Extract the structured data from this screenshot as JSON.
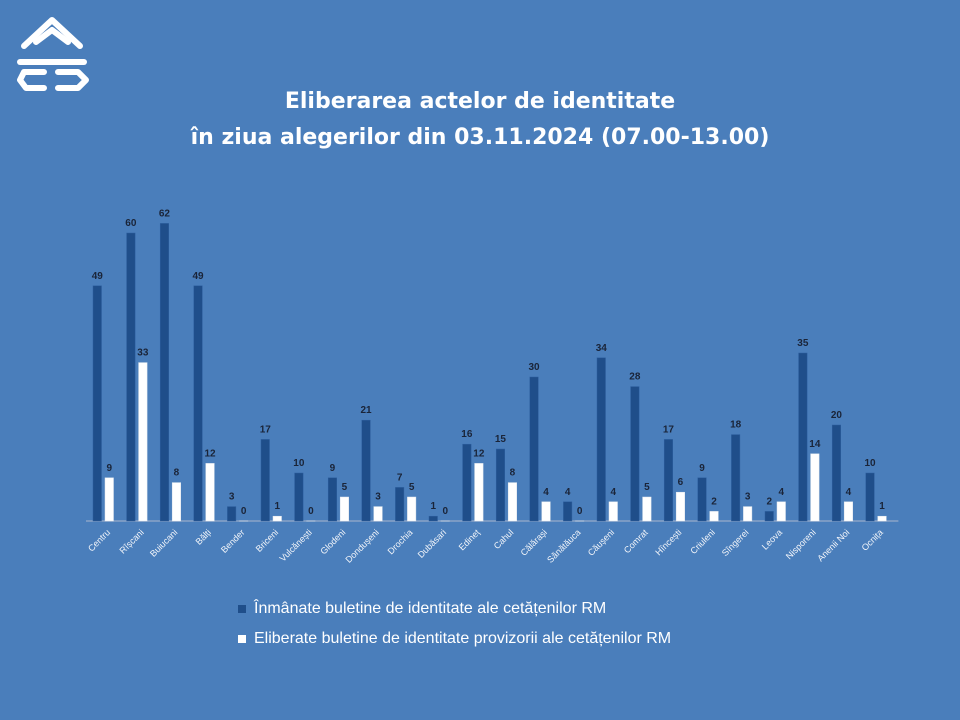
{
  "title_line1": "Eliberarea actelor de identitate",
  "title_line2": "în ziua alegerilor din 03.11.2024 (07.00-13.00)",
  "colors": {
    "background": "#4a7ebb",
    "series1": "#1f4e8a",
    "series2": "#ffffff",
    "text": "#1a2438"
  },
  "chart_data": {
    "type": "bar",
    "categories": [
      "Centru",
      "Rîșcani",
      "Buiucani",
      "Bălți",
      "Bender",
      "Briceni",
      "Vulcănești",
      "Glodeni",
      "Dondușeni",
      "Drochia",
      "Dubăsari",
      "Edineț",
      "Cahul",
      "Călărași",
      "Sănătăuca",
      "Căușeni",
      "Comrat",
      "Hîncești",
      "Criuleni",
      "Sîngerei",
      "Leova",
      "Nisporeni",
      "Anenii Noi",
      "Ocnița"
    ],
    "series": [
      {
        "name": "Înmânate buletine de identitate ale cetățenilor RM",
        "values": [
          49,
          60,
          62,
          49,
          3,
          17,
          10,
          9,
          21,
          7,
          1,
          16,
          15,
          30,
          4,
          34,
          28,
          17,
          9,
          18,
          2,
          35,
          20,
          10
        ]
      },
      {
        "name": "Eliberate buletine de identitate provizorii ale cetățenilor RM",
        "values": [
          9,
          33,
          8,
          12,
          0,
          1,
          0,
          5,
          3,
          5,
          0,
          12,
          8,
          4,
          0,
          4,
          5,
          6,
          2,
          3,
          4,
          14,
          4,
          1
        ]
      }
    ],
    "legend_position": "bottom",
    "grid": false
  }
}
